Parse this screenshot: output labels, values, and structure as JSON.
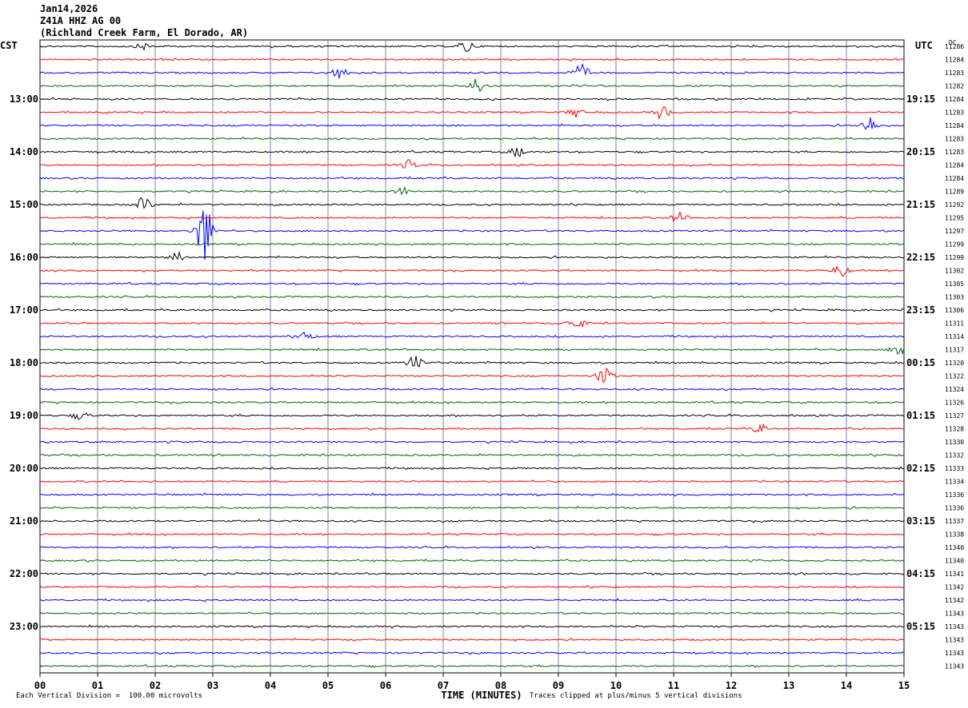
{
  "header": {
    "date": "Jan14,2026",
    "station": "Z41A HHZ AG 00",
    "location": "(Richland Creek Farm, El Dorado, AR)"
  },
  "footer": {
    "scale_note": "Each Vertical Division =  100.00 microvolts",
    "clip_note": "Traces clipped at plus/minus 5 vertical divisions"
  },
  "chart_data": {
    "type": "line",
    "title": "Jan14,2026",
    "left_axis_label": "CST",
    "right_axis_label": "UTC",
    "dc_label": "DC",
    "xlabel": "TIME (MINUTES)",
    "xlim": [
      0,
      15
    ],
    "x_ticks": [
      "00",
      "01",
      "02",
      "03",
      "04",
      "05",
      "06",
      "07",
      "08",
      "09",
      "10",
      "11",
      "12",
      "13",
      "14",
      "15"
    ],
    "trace_minutes": 15,
    "trace_colors": [
      "#000000",
      "#ff0000",
      "#0000ff",
      "#006400"
    ],
    "grid_color": "#8080a0",
    "left_hour_labels": [
      "13:00",
      "14:00",
      "15:00",
      "16:00",
      "17:00",
      "18:00",
      "19:00",
      "20:00",
      "21:00",
      "22:00",
      "23:00"
    ],
    "right_hour_labels": [
      "19:15",
      "20:15",
      "21:15",
      "22:15",
      "23:15",
      "00:15",
      "01:15",
      "02:15",
      "03:15",
      "04:15",
      "05:15"
    ],
    "first_labeled_trace": 4,
    "dc_offsets": [
      11286,
      11284,
      11283,
      11282,
      11284,
      11283,
      11284,
      11283,
      11283,
      11284,
      11284,
      11289,
      11292,
      11295,
      11297,
      11299,
      11299,
      11302,
      11305,
      11303,
      11306,
      11311,
      11314,
      11317,
      11320,
      11322,
      11324,
      11326,
      11327,
      11328,
      11330,
      11332,
      11333,
      11334,
      11336,
      11336,
      11337,
      11338,
      11340,
      11340,
      11341,
      11342,
      11342,
      11343,
      11343,
      11343,
      11343,
      11343
    ],
    "events": [
      {
        "trace": 0,
        "minute": 7.4,
        "amplitude": 0.5
      },
      {
        "trace": 0,
        "minute": 1.8,
        "amplitude": 0.25
      },
      {
        "trace": 2,
        "minute": 5.2,
        "amplitude": 0.5
      },
      {
        "trace": 2,
        "minute": 9.4,
        "amplitude": 0.6
      },
      {
        "trace": 3,
        "minute": 7.6,
        "amplitude": 0.7
      },
      {
        "trace": 5,
        "minute": 9.3,
        "amplitude": 0.35
      },
      {
        "trace": 5,
        "minute": 10.8,
        "amplitude": 0.45
      },
      {
        "trace": 6,
        "minute": 14.4,
        "amplitude": 0.7
      },
      {
        "trace": 8,
        "minute": 8.3,
        "amplitude": 0.4
      },
      {
        "trace": 9,
        "minute": 6.4,
        "amplitude": 0.35
      },
      {
        "trace": 11,
        "minute": 6.3,
        "amplitude": 0.3
      },
      {
        "trace": 12,
        "minute": 1.8,
        "amplitude": 0.55
      },
      {
        "trace": 14,
        "minute": 2.85,
        "amplitude": 2.5
      },
      {
        "trace": 13,
        "minute": 11.1,
        "amplitude": 0.45
      },
      {
        "trace": 16,
        "minute": 2.4,
        "amplitude": 0.35
      },
      {
        "trace": 17,
        "minute": 13.9,
        "amplitude": 0.5
      },
      {
        "trace": 21,
        "minute": 9.3,
        "amplitude": 0.5
      },
      {
        "trace": 22,
        "minute": 4.6,
        "amplitude": 0.35
      },
      {
        "trace": 23,
        "minute": 14.9,
        "amplitude": 0.6
      },
      {
        "trace": 24,
        "minute": 6.5,
        "amplitude": 0.55
      },
      {
        "trace": 25,
        "minute": 9.8,
        "amplitude": 0.7
      },
      {
        "trace": 28,
        "minute": 0.7,
        "amplitude": 0.3
      },
      {
        "trace": 29,
        "minute": 12.5,
        "amplitude": 0.35
      }
    ]
  }
}
